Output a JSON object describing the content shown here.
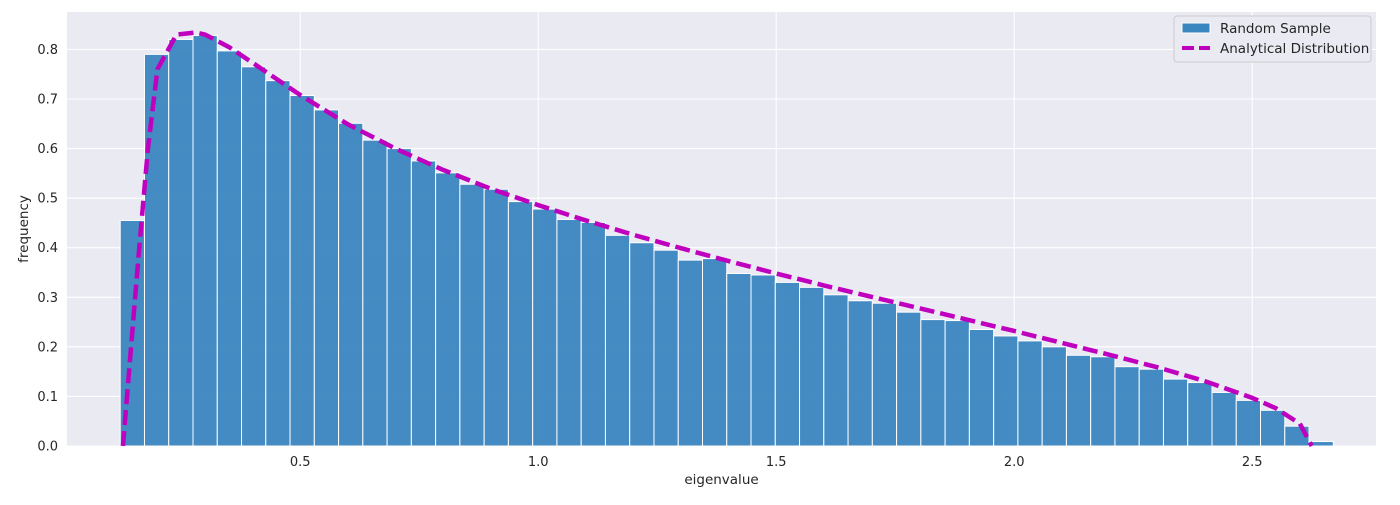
{
  "chart_data": {
    "type": "bar",
    "xlabel": "eigenvalue",
    "ylabel": "frequency",
    "xlim": [
      0.01,
      2.76
    ],
    "ylim": [
      0.0,
      0.8755
    ],
    "xticks": [
      0.5,
      1.0,
      1.5,
      2.0,
      2.5
    ],
    "xtick_labels": [
      "0.5",
      "1.0",
      "1.5",
      "2.0",
      "2.5"
    ],
    "yticks": [
      0.0,
      0.1,
      0.2,
      0.3,
      0.4,
      0.5,
      0.6,
      0.7,
      0.8
    ],
    "ytick_labels": [
      "0.0",
      "0.1",
      "0.2",
      "0.3",
      "0.4",
      "0.5",
      "0.6",
      "0.7",
      "0.8"
    ],
    "grid": true,
    "legend_position": "top-right",
    "colors": {
      "background": "#eaeaf2",
      "grid": "#ffffff",
      "bars": "#3a86bf",
      "bar_edge": "#ffffff",
      "line": "#bf00bf"
    },
    "series": [
      {
        "name": "Random Sample",
        "kind": "histogram",
        "bin_start": 0.1218,
        "bin_width": 0.05097,
        "values": [
          0.455,
          0.79,
          0.82,
          0.828,
          0.797,
          0.765,
          0.737,
          0.707,
          0.678,
          0.651,
          0.617,
          0.6,
          0.575,
          0.551,
          0.528,
          0.518,
          0.493,
          0.478,
          0.457,
          0.451,
          0.425,
          0.41,
          0.395,
          0.375,
          0.378,
          0.348,
          0.345,
          0.33,
          0.32,
          0.305,
          0.293,
          0.288,
          0.27,
          0.255,
          0.253,
          0.235,
          0.222,
          0.212,
          0.2,
          0.183,
          0.18,
          0.16,
          0.155,
          0.135,
          0.128,
          0.108,
          0.092,
          0.072,
          0.04,
          0.009
        ]
      },
      {
        "name": "Analytical Distribution",
        "kind": "line",
        "style": "dashed",
        "x": [
          0.1275,
          0.16,
          0.18,
          0.2,
          0.24,
          0.28,
          0.3,
          0.35,
          0.4,
          0.5,
          0.6,
          0.7,
          0.8,
          0.9,
          1.0,
          1.1,
          1.2,
          1.3,
          1.4,
          1.5,
          1.6,
          1.7,
          1.8,
          1.9,
          2.0,
          2.1,
          2.2,
          2.3,
          2.4,
          2.5,
          2.55,
          2.6,
          2.625
        ],
        "y": [
          0.0,
          0.38,
          0.6,
          0.76,
          0.83,
          0.834,
          0.83,
          0.805,
          0.773,
          0.708,
          0.649,
          0.6,
          0.557,
          0.519,
          0.486,
          0.455,
          0.426,
          0.399,
          0.373,
          0.348,
          0.324,
          0.301,
          0.278,
          0.255,
          0.232,
          0.208,
          0.184,
          0.159,
          0.131,
          0.097,
          0.076,
          0.045,
          0.0
        ]
      }
    ]
  }
}
